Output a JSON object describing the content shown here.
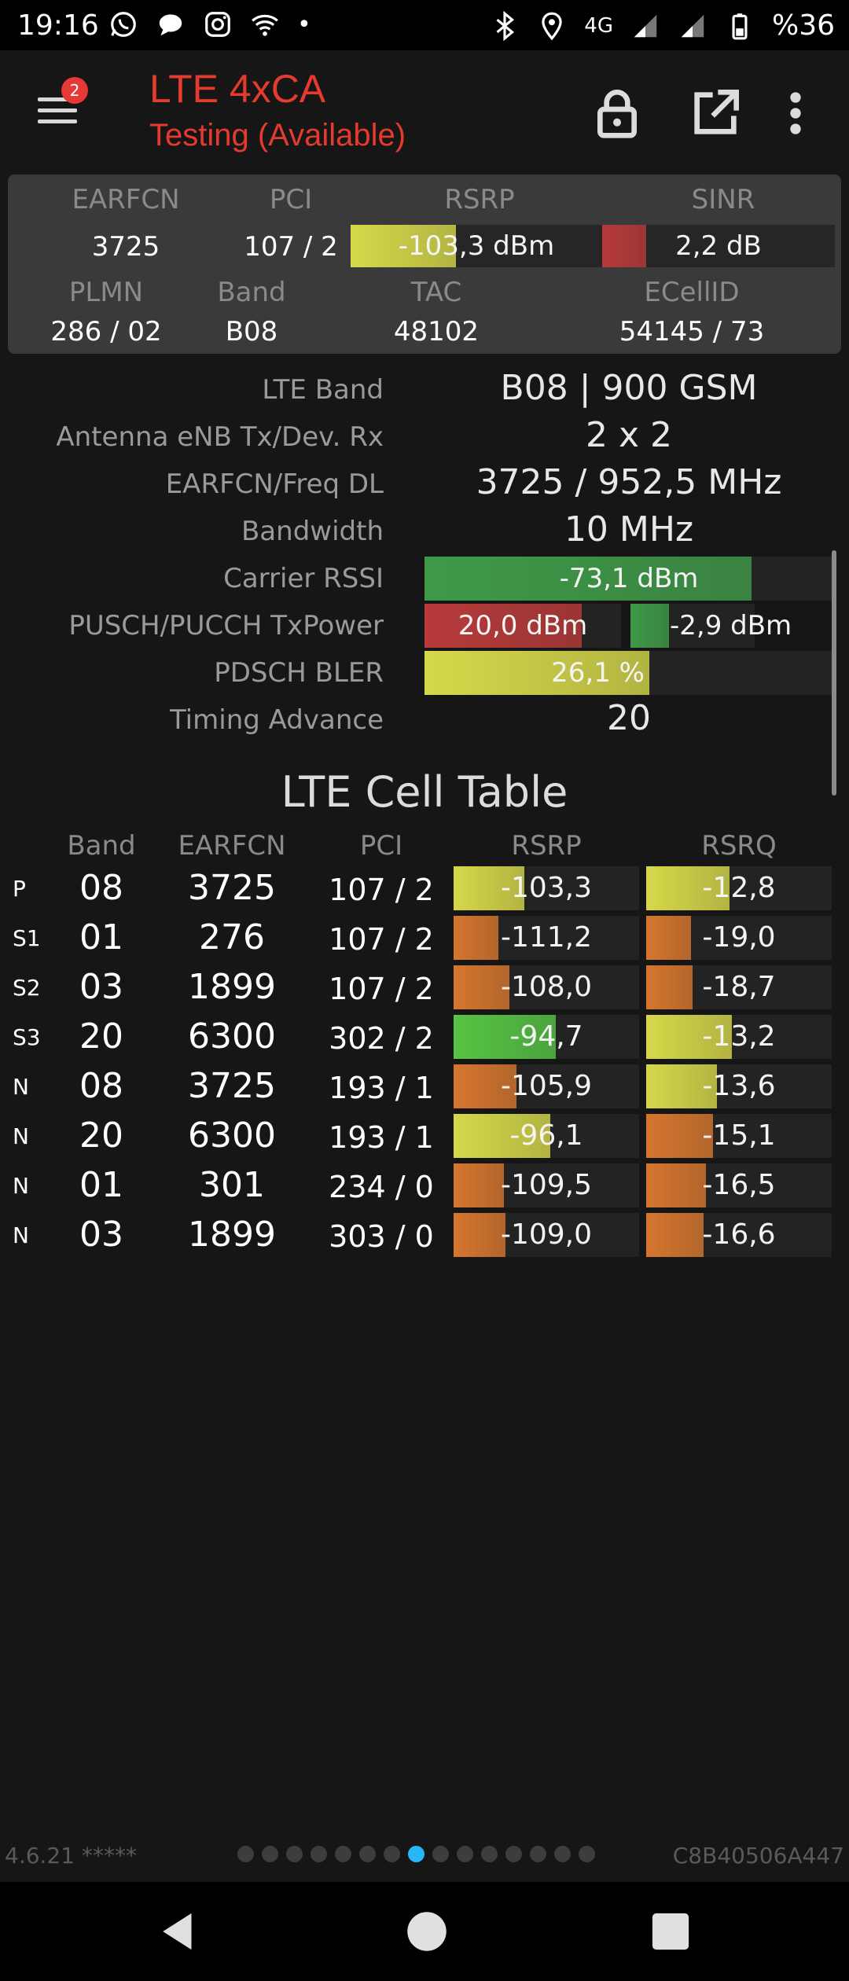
{
  "status": {
    "time": "19:16",
    "battery": "%36",
    "network": "4G",
    "colors": {
      "bg": "#000000",
      "text": "#ffffff"
    }
  },
  "app": {
    "title": "LTE 4xCA",
    "subtitle": "Testing (Available)",
    "menu_badge": "2",
    "accent": "#e53a2e"
  },
  "summary": {
    "labels": {
      "earfcn": "EARFCN",
      "pci": "PCI",
      "rsrp": "RSRP",
      "sinr": "SINR",
      "plmn": "PLMN",
      "band": "Band",
      "tac": "TAC",
      "ecellid": "ECellID"
    },
    "earfcn": "3725",
    "pci": "107 / 2",
    "rsrp": "-103,3 dBm",
    "rsrp_fill": 0.42,
    "sinr": "2,2 dB",
    "sinr_fill": 0.19,
    "plmn": "286 / 02",
    "band": "B08",
    "tac": "48102",
    "ecellid": "54145 / 73"
  },
  "details": {
    "lte_band_label": "LTE Band",
    "lte_band": "B08 | 900 GSM",
    "antenna_label": "Antenna eNB Tx/Dev. Rx",
    "antenna": "2 x 2",
    "earfcn_freq_label": "EARFCN/Freq DL",
    "earfcn_freq": "3725 / 952,5 MHz",
    "bandwidth_label": "Bandwidth",
    "bandwidth": "10 MHz",
    "rssi_label": "Carrier RSSI",
    "rssi": "-73,1 dBm",
    "rssi_fill": 0.8,
    "txpower_label": "PUSCH/PUCCH TxPower",
    "pusch": "20,0 dBm",
    "pusch_fill": 0.8,
    "pucch": "-2,9 dBm",
    "pucch_fill": 0.31,
    "bler_label": "PDSCH BLER",
    "bler": "26,1 %",
    "bler_fill": 0.55,
    "ta_label": "Timing Advance",
    "ta": "20"
  },
  "cell_table": {
    "title": "LTE Cell Table",
    "headers": {
      "band": "Band",
      "earfcn": "EARFCN",
      "pci": "PCI",
      "rsrp": "RSRP",
      "rsrq": "RSRQ"
    },
    "rows": [
      {
        "type": "P",
        "band": "08",
        "earfcn": "3725",
        "pci": "107 / 2",
        "rsrp": "-103,3",
        "rsrq": "-12,8",
        "rsrp_fill": 0.38,
        "rsrq_fill": 0.45,
        "rsrp_color": "yellow",
        "rsrq_color": "yellow"
      },
      {
        "type": "S1",
        "band": "01",
        "earfcn": "276",
        "pci": "107 / 2",
        "rsrp": "-111,2",
        "rsrq": "-19,0",
        "rsrp_fill": 0.24,
        "rsrq_fill": 0.24,
        "rsrp_color": "orange",
        "rsrq_color": "orange"
      },
      {
        "type": "S2",
        "band": "03",
        "earfcn": "1899",
        "pci": "107 / 2",
        "rsrp": "-108,0",
        "rsrq": "-18,7",
        "rsrp_fill": 0.3,
        "rsrq_fill": 0.25,
        "rsrp_color": "orange",
        "rsrq_color": "orange"
      },
      {
        "type": "S3",
        "band": "20",
        "earfcn": "6300",
        "pci": "302 / 2",
        "rsrp": "-94,7",
        "rsrq": "-13,2",
        "rsrp_fill": 0.55,
        "rsrq_fill": 0.46,
        "rsrp_color": "green",
        "rsrq_color": "yellow"
      },
      {
        "type": "N",
        "band": "08",
        "earfcn": "3725",
        "pci": "193 / 1",
        "rsrp": "-105,9",
        "rsrq": "-13,6",
        "rsrp_fill": 0.34,
        "rsrq_fill": 0.38,
        "rsrp_color": "orange",
        "rsrq_color": "yellow"
      },
      {
        "type": "N",
        "band": "20",
        "earfcn": "6300",
        "pci": "193 / 1",
        "rsrp": "-96,1",
        "rsrq": "-15,1",
        "rsrp_fill": 0.52,
        "rsrq_fill": 0.36,
        "rsrp_color": "yellow",
        "rsrq_color": "orange"
      },
      {
        "type": "N",
        "band": "01",
        "earfcn": "301",
        "pci": "234 / 0",
        "rsrp": "-109,5",
        "rsrq": "-16,5",
        "rsrp_fill": 0.27,
        "rsrq_fill": 0.32,
        "rsrp_color": "orange",
        "rsrq_color": "orange"
      },
      {
        "type": "N",
        "band": "03",
        "earfcn": "1899",
        "pci": "303 / 0",
        "rsrp": "-109,0",
        "rsrq": "-16,6",
        "rsrp_fill": 0.28,
        "rsrq_fill": 0.31,
        "rsrp_color": "orange",
        "rsrq_color": "orange"
      }
    ]
  },
  "footer": {
    "version": "4.6.21 *****",
    "device_id": "C8B40506A447",
    "page_count": 15,
    "active_page": 8
  },
  "bar_colors": {
    "yellow": "#d6d84a",
    "orange": "#d6762e",
    "green": "#56c444",
    "red": "#b83a3a",
    "darkgreen": "#3f9a48"
  }
}
